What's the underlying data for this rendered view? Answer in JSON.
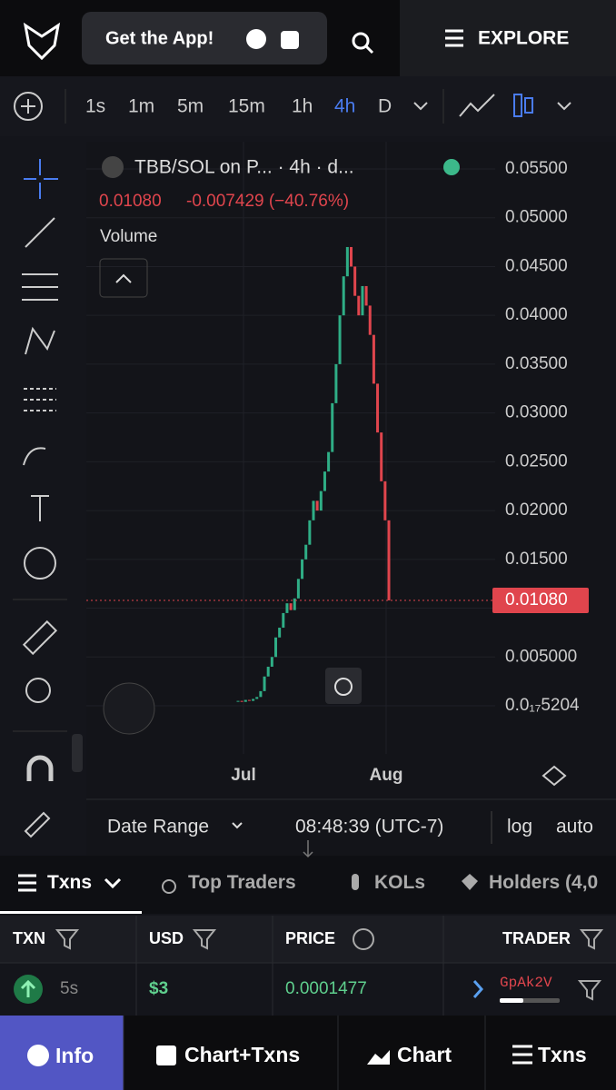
{
  "header": {
    "get_app": "Get the App!",
    "explore": "EXPLORE"
  },
  "toolbar": {
    "intervals": [
      "1s",
      "1m",
      "5m",
      "15m",
      "1h",
      "4h",
      "D"
    ],
    "active_interval": 5
  },
  "chart": {
    "symbol": "TBB/SOL on P... · 4h · d...",
    "last_price": {
      "value": 0.0108,
      "label": "0.01080"
    },
    "change": "-0.007429 (−40.76%)",
    "volume_label": "Volume",
    "ylim": [
      0,
      0.055
    ],
    "yticks": [
      {
        "value": 0.055,
        "label": "0.05500"
      },
      {
        "value": 0.05,
        "label": "0.05000"
      },
      {
        "value": 0.045,
        "label": "0.04500"
      },
      {
        "value": 0.04,
        "label": "0.04000"
      },
      {
        "value": 0.035,
        "label": "0.03500"
      },
      {
        "value": 0.03,
        "label": "0.03000"
      },
      {
        "value": 0.025,
        "label": "0.02500"
      },
      {
        "value": 0.02,
        "label": "0.02000"
      },
      {
        "value": 0.015,
        "label": "0.01500"
      },
      {
        "value": 0.01,
        "label": "0.01000"
      },
      {
        "value": 0.005,
        "label": "0.005000"
      },
      {
        "value": 5.204e-19,
        "label": "0.0₁₇5204"
      }
    ],
    "x_labels": [
      "Jul",
      "Aug"
    ],
    "closes": [
      0.0005,
      0.0004,
      0.0006,
      0.0005,
      0.0007,
      0.0009,
      0.0015,
      0.003,
      0.004,
      0.005,
      0.007,
      0.008,
      0.0095,
      0.0105,
      0.0098,
      0.011,
      0.013,
      0.015,
      0.0165,
      0.019,
      0.021,
      0.02,
      0.022,
      0.024,
      0.026,
      0.031,
      0.035,
      0.04,
      0.044,
      0.047,
      0.045,
      0.042,
      0.04,
      0.043,
      0.041,
      0.038,
      0.033,
      0.028,
      0.023,
      0.019,
      0.0108
    ]
  },
  "footer_bar": {
    "date_range": "Date Range",
    "time": "08:48:39 (UTC-7)",
    "log": "log",
    "auto": "auto"
  },
  "tabs": [
    "Txns",
    "Top Traders",
    "KOLs",
    "Holders (4,0"
  ],
  "table": {
    "headers": [
      "TXN",
      "USD",
      "PRICE",
      "TRADER"
    ],
    "rows": [
      [
        "5s",
        "$3",
        "0.0001477",
        "GpAk2V"
      ]
    ]
  },
  "nav": [
    "Info",
    "Chart+Txns",
    "Chart",
    "Txns"
  ]
}
